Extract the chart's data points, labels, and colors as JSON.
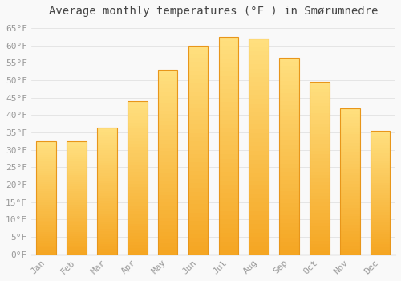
{
  "title": "Average monthly temperatures (°F ) in Smørumnedre",
  "months": [
    "Jan",
    "Feb",
    "Mar",
    "Apr",
    "May",
    "Jun",
    "Jul",
    "Aug",
    "Sep",
    "Oct",
    "Nov",
    "Dec"
  ],
  "values": [
    32.5,
    32.5,
    36.5,
    44.0,
    53.0,
    60.0,
    62.5,
    62.0,
    56.5,
    49.5,
    42.0,
    35.5
  ],
  "bar_color_bottom": "#F5A623",
  "bar_color_top": "#FFD966",
  "bar_edge_color": "#E8961A",
  "background_color": "#F9F9F9",
  "grid_color": "#DDDDDD",
  "ylim": [
    0,
    67
  ],
  "ytick_step": 5,
  "title_fontsize": 10,
  "tick_fontsize": 8,
  "tick_label_color": "#999999",
  "title_color": "#444444",
  "bar_width": 0.65
}
